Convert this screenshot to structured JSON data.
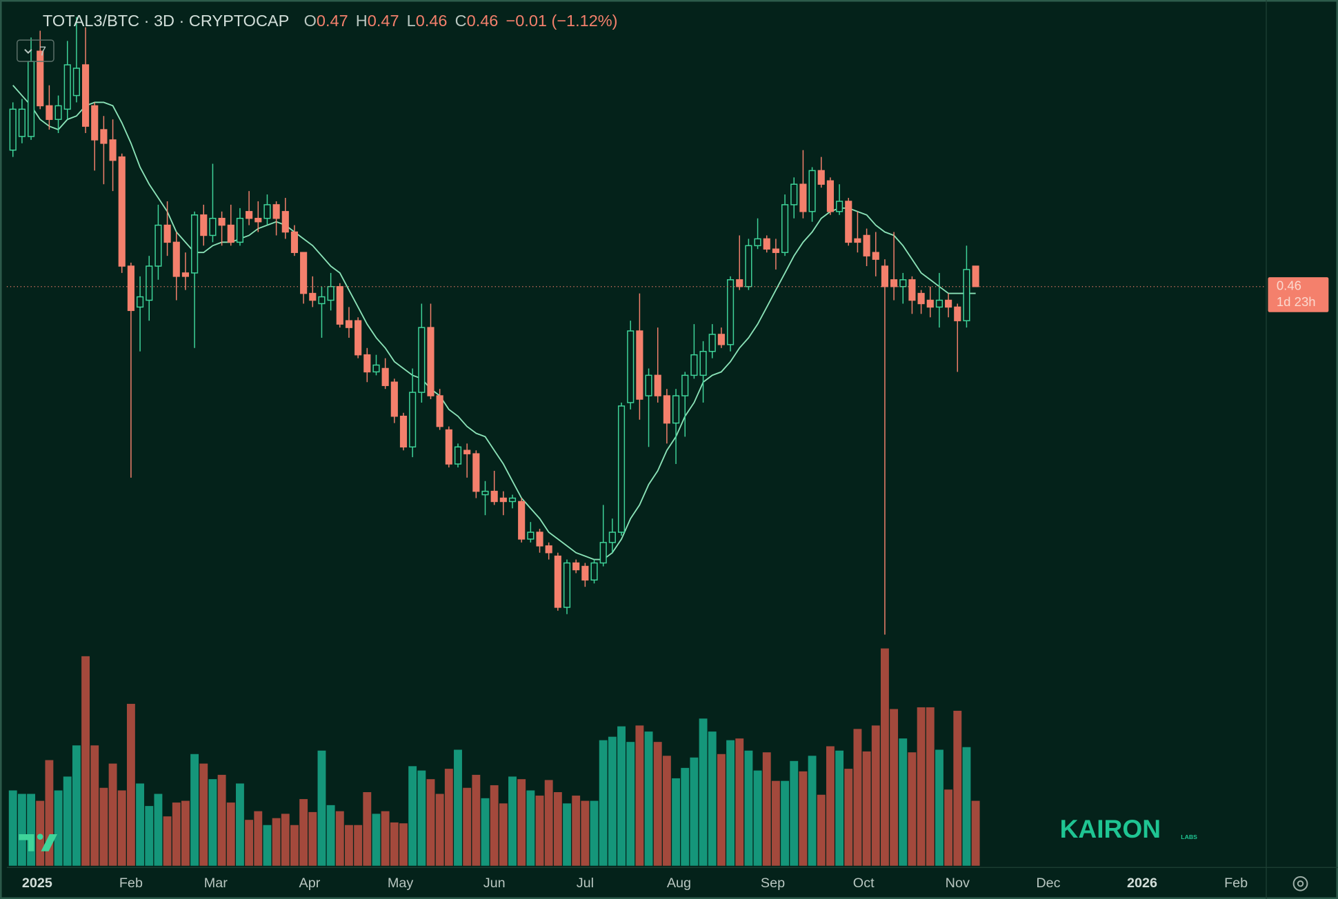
{
  "chart_data": {
    "type": "candlestick",
    "title": "TOTAL3/BTC · 3D · CRYPTOCAP",
    "ohlc_legend": [
      {
        "label": "O",
        "value": "0.47"
      },
      {
        "label": "H",
        "value": "0.47"
      },
      {
        "label": "L",
        "value": "0.46"
      },
      {
        "label": "C",
        "value": "0.46"
      }
    ],
    "change": "−0.01 (−1.12%)",
    "indicator_count": "7",
    "up_color": "#3fd49a",
    "down_color": "#f4806c",
    "xlim": [
      -10,
      406
    ],
    "ylim": [
      0.292,
      0.544
    ],
    "xticks": [
      {
        "value": 0,
        "label": "2025"
      },
      {
        "value": 31,
        "label": "Feb"
      },
      {
        "value": 59,
        "label": "Mar"
      },
      {
        "value": 90,
        "label": "Apr"
      },
      {
        "value": 120,
        "label": "May"
      },
      {
        "value": 151,
        "label": "Jun"
      },
      {
        "value": 181,
        "label": "Jul"
      },
      {
        "value": 212,
        "label": "Aug"
      },
      {
        "value": 243,
        "label": "Sep"
      },
      {
        "value": 273,
        "label": "Oct"
      },
      {
        "value": 304,
        "label": "Nov"
      },
      {
        "value": 334,
        "label": "Dec"
      },
      {
        "value": 365,
        "label": "2026"
      },
      {
        "value": 396,
        "label": "Feb"
      }
    ],
    "x": [
      -8,
      -5,
      -2,
      1,
      4,
      7,
      10,
      13,
      16,
      19,
      22,
      25,
      28,
      31,
      34,
      37,
      40,
      43,
      46,
      49,
      52,
      55,
      58,
      61,
      64,
      67,
      70,
      73,
      76,
      79,
      82,
      85,
      88,
      91,
      94,
      97,
      100,
      103,
      106,
      109,
      112,
      115,
      118,
      121,
      124,
      127,
      130,
      133,
      136,
      139,
      142,
      145,
      148,
      151,
      154,
      157,
      160,
      163,
      166,
      169,
      172,
      175,
      178,
      181,
      184,
      187,
      190,
      193,
      196,
      199,
      202,
      205,
      208,
      211,
      214,
      217,
      220,
      223,
      226,
      229,
      232,
      235,
      238,
      241,
      244,
      247,
      250,
      253,
      256,
      259,
      262,
      265,
      268,
      271,
      274,
      277,
      280,
      283,
      286,
      289,
      292,
      295,
      298,
      301,
      304,
      307,
      310
    ],
    "open": [
      0.5,
      0.504,
      0.504,
      0.529,
      0.513,
      0.509,
      0.512,
      0.516,
      0.525,
      0.513,
      0.506,
      0.503,
      0.498,
      0.466,
      0.454,
      0.456,
      0.466,
      0.478,
      0.473,
      0.464,
      0.464,
      0.481,
      0.475,
      0.48,
      0.478,
      0.473,
      0.482,
      0.48,
      0.48,
      0.484,
      0.482,
      0.476,
      0.47,
      0.458,
      0.455,
      0.456,
      0.46,
      0.45,
      0.45,
      0.44,
      0.435,
      0.436,
      0.432,
      0.422,
      0.413,
      0.429,
      0.448,
      0.428,
      0.418,
      0.408,
      0.412,
      0.411,
      0.399,
      0.4,
      0.398,
      0.397,
      0.397,
      0.386,
      0.388,
      0.384,
      0.381,
      0.366,
      0.379,
      0.378,
      0.374,
      0.379,
      0.385,
      0.388,
      0.426,
      0.447,
      0.428,
      0.434,
      0.428,
      0.42,
      0.428,
      0.434,
      0.434,
      0.441,
      0.446,
      0.443,
      0.462,
      0.46,
      0.472,
      0.474,
      0.471,
      0.47,
      0.484,
      0.49,
      0.482,
      0.494,
      0.491,
      0.482,
      0.485,
      0.474,
      0.475,
      0.47,
      0.466,
      0.462,
      0.46,
      0.462,
      0.458,
      0.456,
      0.454,
      0.456,
      0.454,
      0.45,
      0.466
    ],
    "high": [
      0.514,
      0.515,
      0.533,
      0.535,
      0.519,
      0.516,
      0.532,
      0.539,
      0.536,
      0.514,
      0.51,
      0.509,
      0.499,
      0.467,
      0.463,
      0.469,
      0.484,
      0.485,
      0.476,
      0.47,
      0.482,
      0.484,
      0.496,
      0.482,
      0.484,
      0.483,
      0.488,
      0.485,
      0.487,
      0.485,
      0.486,
      0.478,
      0.47,
      0.463,
      0.46,
      0.464,
      0.461,
      0.454,
      0.451,
      0.442,
      0.44,
      0.439,
      0.433,
      0.423,
      0.436,
      0.455,
      0.455,
      0.43,
      0.419,
      0.414,
      0.414,
      0.412,
      0.403,
      0.406,
      0.4,
      0.399,
      0.398,
      0.391,
      0.389,
      0.385,
      0.382,
      0.38,
      0.38,
      0.379,
      0.38,
      0.396,
      0.392,
      0.426,
      0.45,
      0.458,
      0.436,
      0.448,
      0.43,
      0.43,
      0.435,
      0.449,
      0.444,
      0.449,
      0.448,
      0.463,
      0.475,
      0.474,
      0.48,
      0.475,
      0.474,
      0.487,
      0.492,
      0.5,
      0.495,
      0.498,
      0.492,
      0.49,
      0.486,
      0.482,
      0.477,
      0.476,
      0.468,
      0.476,
      0.464,
      0.463,
      0.459,
      0.46,
      0.464,
      0.458,
      0.455,
      0.472,
      0.466
    ],
    "low": [
      0.498,
      0.502,
      0.503,
      0.512,
      0.506,
      0.505,
      0.509,
      0.514,
      0.505,
      0.494,
      0.49,
      0.488,
      0.464,
      0.404,
      0.441,
      0.45,
      0.462,
      0.469,
      0.456,
      0.459,
      0.442,
      0.472,
      0.473,
      0.472,
      0.472,
      0.472,
      0.478,
      0.476,
      0.478,
      0.475,
      0.474,
      0.469,
      0.455,
      0.454,
      0.445,
      0.453,
      0.448,
      0.445,
      0.439,
      0.432,
      0.434,
      0.43,
      0.42,
      0.412,
      0.41,
      0.426,
      0.427,
      0.418,
      0.407,
      0.407,
      0.404,
      0.398,
      0.393,
      0.396,
      0.393,
      0.395,
      0.385,
      0.385,
      0.382,
      0.38,
      0.365,
      0.364,
      0.376,
      0.372,
      0.373,
      0.378,
      0.382,
      0.387,
      0.424,
      0.421,
      0.413,
      0.426,
      0.414,
      0.408,
      0.416,
      0.433,
      0.426,
      0.439,
      0.442,
      0.441,
      0.459,
      0.459,
      0.471,
      0.47,
      0.465,
      0.469,
      0.48,
      0.48,
      0.479,
      0.489,
      0.481,
      0.481,
      0.472,
      0.47,
      0.466,
      0.463,
      0.358,
      0.456,
      0.455,
      0.452,
      0.452,
      0.451,
      0.448,
      0.451,
      0.435,
      0.448,
      0.46
    ],
    "close": [
      0.512,
      0.512,
      0.526,
      0.513,
      0.509,
      0.513,
      0.525,
      0.524,
      0.507,
      0.503,
      0.502,
      0.497,
      0.466,
      0.453,
      0.457,
      0.466,
      0.478,
      0.473,
      0.463,
      0.463,
      0.481,
      0.475,
      0.48,
      0.478,
      0.473,
      0.48,
      0.48,
      0.479,
      0.484,
      0.48,
      0.476,
      0.47,
      0.458,
      0.456,
      0.457,
      0.46,
      0.449,
      0.448,
      0.44,
      0.435,
      0.437,
      0.431,
      0.422,
      0.413,
      0.429,
      0.448,
      0.428,
      0.419,
      0.408,
      0.413,
      0.411,
      0.4,
      0.4,
      0.397,
      0.397,
      0.398,
      0.386,
      0.388,
      0.384,
      0.382,
      0.366,
      0.379,
      0.377,
      0.374,
      0.379,
      0.385,
      0.388,
      0.425,
      0.447,
      0.427,
      0.434,
      0.428,
      0.42,
      0.428,
      0.434,
      0.44,
      0.441,
      0.446,
      0.443,
      0.462,
      0.46,
      0.472,
      0.474,
      0.471,
      0.47,
      0.484,
      0.49,
      0.482,
      0.494,
      0.49,
      0.482,
      0.485,
      0.473,
      0.473,
      0.469,
      0.468,
      0.46,
      0.46,
      0.462,
      0.456,
      0.455,
      0.454,
      0.456,
      0.454,
      0.45,
      0.465,
      0.46
    ],
    "ma": {
      "color": "#8be3b8",
      "values": [
        0.519,
        0.516,
        0.513,
        0.509,
        0.507,
        0.506,
        0.509,
        0.51,
        0.513,
        0.514,
        0.514,
        0.513,
        0.508,
        0.502,
        0.495,
        0.49,
        0.486,
        0.482,
        0.476,
        0.473,
        0.47,
        0.47,
        0.472,
        0.473,
        0.473,
        0.474,
        0.475,
        0.477,
        0.478,
        0.479,
        0.478,
        0.476,
        0.474,
        0.472,
        0.469,
        0.466,
        0.464,
        0.459,
        0.454,
        0.449,
        0.445,
        0.442,
        0.438,
        0.436,
        0.434,
        0.433,
        0.43,
        0.428,
        0.424,
        0.422,
        0.419,
        0.417,
        0.416,
        0.412,
        0.408,
        0.403,
        0.398,
        0.395,
        0.392,
        0.388,
        0.386,
        0.384,
        0.382,
        0.381,
        0.38,
        0.38,
        0.382,
        0.386,
        0.392,
        0.396,
        0.402,
        0.406,
        0.412,
        0.416,
        0.422,
        0.426,
        0.432,
        0.434,
        0.435,
        0.438,
        0.442,
        0.445,
        0.449,
        0.454,
        0.459,
        0.464,
        0.469,
        0.473,
        0.476,
        0.48,
        0.482,
        0.483,
        0.483,
        0.482,
        0.481,
        0.478,
        0.476,
        0.475,
        0.472,
        0.468,
        0.464,
        0.462,
        0.46,
        0.458,
        0.458,
        0.458,
        0.458
      ]
    },
    "volume": {
      "up_color": "#15967a",
      "down_color": "#a3493c",
      "ylim": [
        0,
        1000
      ],
      "values": [
        87,
        83,
        83,
        75,
        122,
        87,
        103,
        139,
        242,
        139,
        90,
        118,
        87,
        187,
        95,
        69,
        83,
        57,
        73,
        75,
        129,
        118,
        100,
        105,
        73,
        95,
        53,
        63,
        47,
        55,
        60,
        47,
        77,
        62,
        133,
        70,
        63,
        47,
        47,
        85,
        60,
        63,
        50,
        49,
        115,
        110,
        100,
        83,
        112,
        134,
        90,
        105,
        78,
        93,
        72,
        103,
        100,
        87,
        81,
        99,
        85,
        72,
        81,
        75,
        75,
        145,
        149,
        161,
        143,
        162,
        155,
        143,
        127,
        101,
        113,
        125,
        170,
        155,
        129,
        145,
        147,
        133,
        110,
        131,
        98,
        98,
        121,
        109,
        127,
        82,
        138,
        133,
        112,
        158,
        132,
        162,
        251,
        181,
        147,
        131,
        183,
        183,
        134,
        88,
        179,
        137,
        75
      ]
    },
    "last_price": {
      "label": "0.46",
      "countdown": "1d 23h",
      "color": "#f4806c"
    },
    "watermark": {
      "text": "KAIRON",
      "sub": "LABS"
    }
  }
}
